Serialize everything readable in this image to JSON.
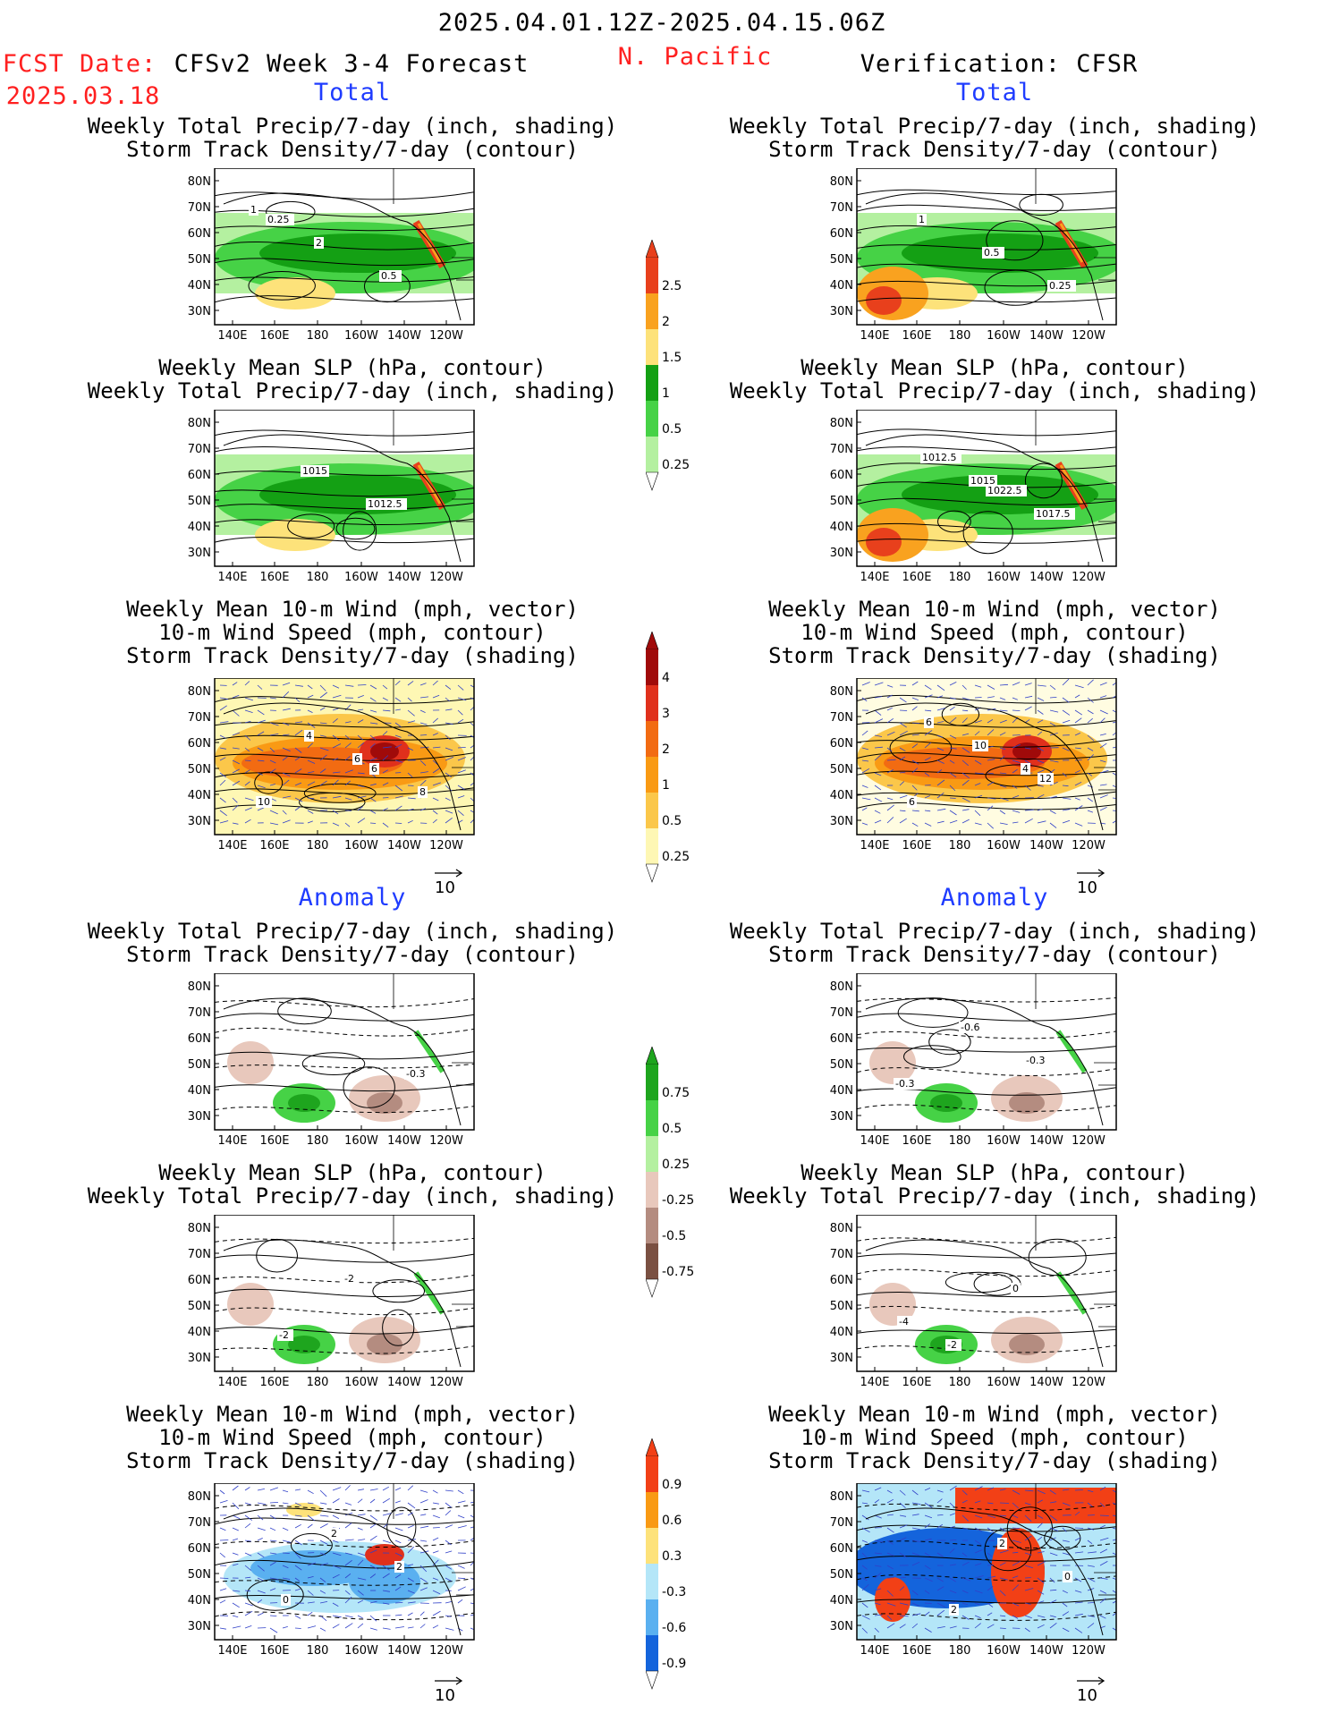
{
  "header": {
    "date_range": "2025.04.01.12Z-2025.04.15.06Z",
    "fcst_label": "FCST Date:",
    "fcst_date": "2025.03.18",
    "model_title": "CFSv2 Week 3-4 Forecast",
    "region": "N. Pacific",
    "verification": "Verification: CFSR",
    "total_label": "Total",
    "anomaly_label": "Anomaly"
  },
  "titles": {
    "precip_storm": [
      "Weekly Total Precip/7-day (inch, shading)",
      "Storm Track Density/7-day (contour)"
    ],
    "slp_precip": [
      "Weekly Mean SLP (hPa, contour)",
      "Weekly Total Precip/7-day (inch, shading)"
    ],
    "wind_storm": [
      "Weekly Mean 10-m Wind (mph, vector)",
      "10-m Wind Speed (mph, contour)",
      "Storm Track Density/7-day (shading)"
    ]
  },
  "axes": {
    "lat_ticks": [
      "80N",
      "70N",
      "60N",
      "50N",
      "40N",
      "30N"
    ],
    "lon_ticks": [
      "140E",
      "160E",
      "180",
      "160W",
      "140W",
      "120W"
    ]
  },
  "vector_ref": "10",
  "colorbars": {
    "precip_total": {
      "labels": [
        "2.5",
        "2",
        "1.5",
        "1",
        "0.5",
        "0.25"
      ],
      "colors": [
        "#e8401c",
        "#f9a21f",
        "#fde27a",
        "#14a014",
        "#46d246",
        "#b4f0a0"
      ]
    },
    "storm_total": {
      "labels": [
        "4",
        "3",
        "2",
        "1",
        "0.5",
        "0.25"
      ],
      "colors": [
        "#a00a0a",
        "#e0301c",
        "#f26b12",
        "#f99a14",
        "#fbc74a",
        "#fef7b4"
      ]
    },
    "precip_anom": {
      "labels": [
        "0.75",
        "0.5",
        "0.25",
        "-0.25",
        "-0.5",
        "-0.75"
      ],
      "colors": [
        "#1ea51e",
        "#46d246",
        "#b4f0a0",
        "#e8c8bc",
        "#b48c80",
        "#7a5042"
      ]
    },
    "storm_anom": {
      "labels": [
        "0.9",
        "0.6",
        "0.3",
        "-0.3",
        "-0.6",
        "-0.9"
      ],
      "colors": [
        "#f24016",
        "#f99a14",
        "#fde27a",
        "#b4e6f8",
        "#5ab0f0",
        "#1464dc"
      ]
    }
  },
  "panels": [
    {
      "id": "fc-total-precip",
      "labels": [
        "1",
        "2",
        "0.5",
        "0.25"
      ]
    },
    {
      "id": "ob-total-precip",
      "labels": [
        "1",
        "0.5",
        "0.25"
      ]
    },
    {
      "id": "fc-total-slp",
      "labels": [
        "1015",
        "1012.5"
      ]
    },
    {
      "id": "ob-total-slp",
      "labels": [
        "1015",
        "1017.5",
        "1012.5",
        "1022.5"
      ]
    },
    {
      "id": "fc-total-wind",
      "labels": [
        "6",
        "8",
        "4",
        "6",
        "10"
      ]
    },
    {
      "id": "ob-total-wind",
      "labels": [
        "4",
        "6",
        "10",
        "12",
        "6"
      ]
    },
    {
      "id": "fc-anom-precip",
      "labels": [
        "-0.3"
      ]
    },
    {
      "id": "ob-anom-precip",
      "labels": [
        "-0.3",
        "-0.6",
        "-0.3"
      ]
    },
    {
      "id": "fc-anom-slp",
      "labels": [
        "-2",
        "-2"
      ]
    },
    {
      "id": "ob-anom-slp",
      "labels": [
        "-2",
        "0",
        "-4"
      ]
    },
    {
      "id": "fc-anom-wind",
      "labels": [
        "2",
        "2",
        "0"
      ]
    },
    {
      "id": "ob-anom-wind",
      "labels": [
        "2",
        "0",
        "2"
      ]
    }
  ]
}
